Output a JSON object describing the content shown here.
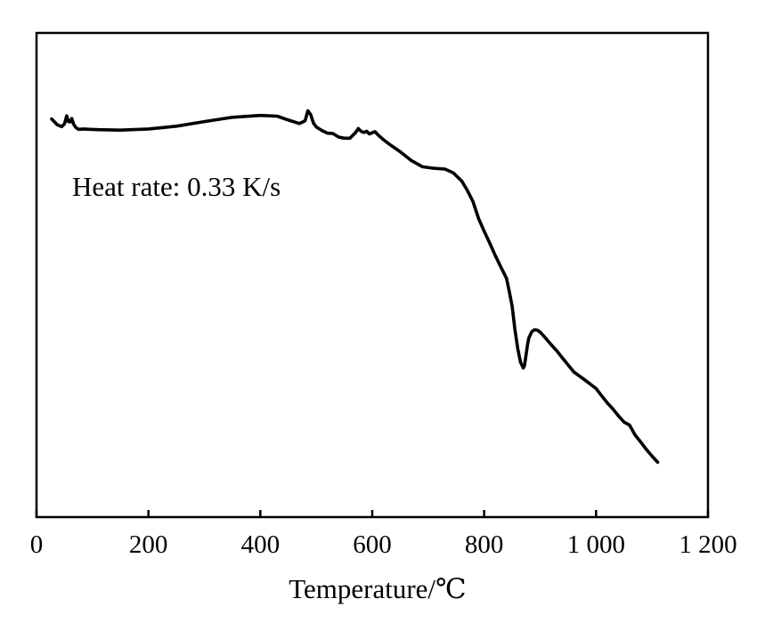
{
  "chart_data": {
    "type": "line",
    "title": "",
    "xlabel": "Temperature/℃",
    "ylabel": "",
    "xlim": [
      0,
      1200
    ],
    "ylim": [
      0,
      100
    ],
    "xticks": [
      0,
      200,
      400,
      600,
      800,
      1000,
      1200
    ],
    "xtick_labels": [
      "0",
      "200",
      "400",
      "600",
      "800",
      "1 000",
      "1 200"
    ],
    "grid": false,
    "legend": "none",
    "annotations": [
      {
        "text": "Heat rate: 0.33 K/s"
      }
    ],
    "series": [
      {
        "color": "#000000",
        "x": [
          27,
          37,
          45,
          50,
          54,
          57,
          60,
          63,
          66,
          70,
          75,
          85,
          95,
          110,
          150,
          200,
          250,
          300,
          350,
          400,
          430,
          450,
          470,
          480,
          485,
          490,
          495,
          500,
          510,
          520,
          530,
          540,
          550,
          560,
          570,
          575,
          580,
          585,
          590,
          595,
          600,
          605,
          610,
          620,
          630,
          650,
          670,
          690,
          710,
          730,
          745,
          760,
          770,
          780,
          790,
          800,
          810,
          820,
          830,
          840,
          845,
          850,
          855,
          860,
          865,
          868,
          870,
          872,
          875,
          878,
          880,
          885,
          890,
          895,
          900,
          910,
          920,
          930,
          940,
          950,
          960,
          980,
          1000,
          1010,
          1020,
          1030,
          1040,
          1050,
          1060,
          1070,
          1080,
          1090,
          1100,
          1110
        ],
        "y": [
          89.5,
          88.0,
          87.5,
          88.2,
          90.3,
          88.8,
          88.7,
          89.6,
          88.2,
          87.3,
          86.8,
          86.9,
          86.8,
          86.7,
          86.6,
          86.9,
          87.6,
          88.8,
          89.9,
          90.4,
          90.2,
          89.2,
          88.3,
          89.0,
          91.6,
          90.6,
          88.4,
          87.4,
          86.5,
          85.8,
          85.7,
          84.8,
          84.5,
          84.5,
          85.9,
          87.0,
          86.3,
          86.0,
          86.3,
          85.6,
          85.9,
          86.2,
          85.4,
          84.1,
          83.0,
          81.0,
          78.7,
          77.1,
          76.7,
          76.5,
          75.5,
          73.4,
          71.0,
          68.1,
          63.7,
          60.4,
          57.3,
          54.1,
          51.1,
          48.2,
          44.8,
          41.0,
          35.0,
          30.0,
          26.5,
          25.6,
          25.0,
          25.6,
          28.5,
          31.5,
          32.8,
          34.4,
          34.9,
          34.8,
          34.3,
          32.7,
          31.0,
          29.4,
          27.6,
          25.8,
          24.0,
          21.9,
          19.7,
          17.8,
          16.0,
          14.4,
          12.6,
          11.0,
          10.2,
          7.6,
          5.8,
          3.9,
          2.2,
          0.6
        ]
      }
    ]
  }
}
